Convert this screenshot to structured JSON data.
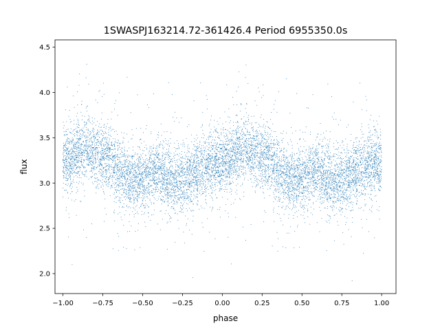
{
  "chart_data": {
    "type": "scatter",
    "title": "1SWASPJ163214.72-361426.4 Period 6955350.0s",
    "xlabel": "phase",
    "ylabel": "flux",
    "xlim": [
      -1.05,
      1.09
    ],
    "ylim": [
      1.78,
      4.58
    ],
    "xticks": [
      -1.0,
      -0.75,
      -0.5,
      -0.25,
      0.0,
      0.25,
      0.5,
      0.75,
      1.0
    ],
    "xtick_labels": [
      "−1.00",
      "−0.75",
      "−0.50",
      "−0.25",
      "0.00",
      "0.25",
      "0.50",
      "0.75",
      "1.00"
    ],
    "yticks": [
      2.0,
      2.5,
      3.0,
      3.5,
      4.0,
      4.5
    ],
    "ytick_labels": [
      "2.0",
      "2.5",
      "3.0",
      "3.5",
      "4.0",
      "4.5"
    ],
    "grid": false,
    "marker_color": "#1f77b4",
    "phase_range": [
      -1.0,
      1.0
    ],
    "profile_phase": [
      0.0,
      0.05,
      0.1,
      0.15,
      0.2,
      0.25,
      0.3,
      0.35,
      0.4,
      0.45,
      0.5,
      0.55,
      0.6,
      0.65,
      0.7,
      0.75,
      0.8,
      0.85,
      0.9,
      0.95,
      1.0
    ],
    "profile_flux": [
      3.2,
      3.27,
      3.35,
      3.38,
      3.33,
      3.3,
      3.25,
      3.15,
      3.07,
      3.02,
      3.05,
      3.1,
      3.12,
      3.05,
      3.02,
      3.03,
      3.08,
      3.15,
      3.2,
      3.22,
      3.2
    ],
    "scatter_sd": 0.17,
    "data_range": [
      1.9,
      4.5
    ],
    "points_per_unit_phase": 4500
  }
}
